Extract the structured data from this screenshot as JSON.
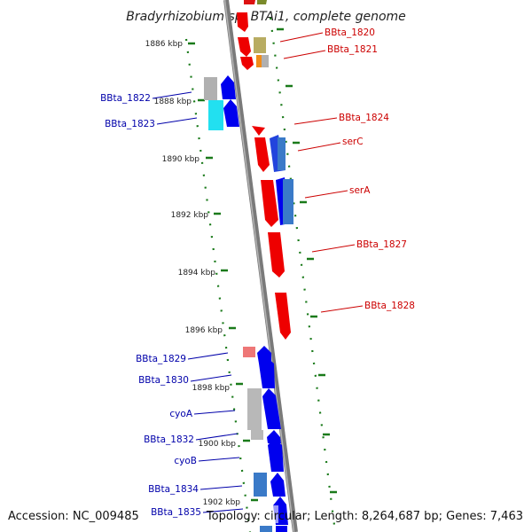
{
  "title": "Bradyrhizobium sp. BTAi1, complete genome",
  "footer": {
    "accession": "Accession: NC_009485",
    "topology": "Topology: circular; Length: 8,264,687 bp; Genes: 7,463"
  },
  "colors": {
    "backbone": "#8a8a8a",
    "tick": "#1a7a1a",
    "forward_label": "#cc0000",
    "reverse_label": "#0000aa"
  },
  "kbp_labels": [
    "1886 kbp",
    "1888 kbp",
    "1890 kbp",
    "1892 kbp",
    "1894 kbp",
    "1896 kbp",
    "1898 kbp",
    "1900 kbp",
    "1902 kbp"
  ],
  "gene_labels": {
    "forward": [
      "BBta_1820",
      "BBta_1821",
      "BBta_1824",
      "serC",
      "serA",
      "BBta_1827",
      "BBta_1828"
    ],
    "reverse": [
      "BBta_1822",
      "BBta_1823",
      "BBta_1829",
      "BBta_1830",
      "cyoA",
      "BBta_1832",
      "cyoB",
      "BBta_1834",
      "BBta_1835"
    ]
  }
}
